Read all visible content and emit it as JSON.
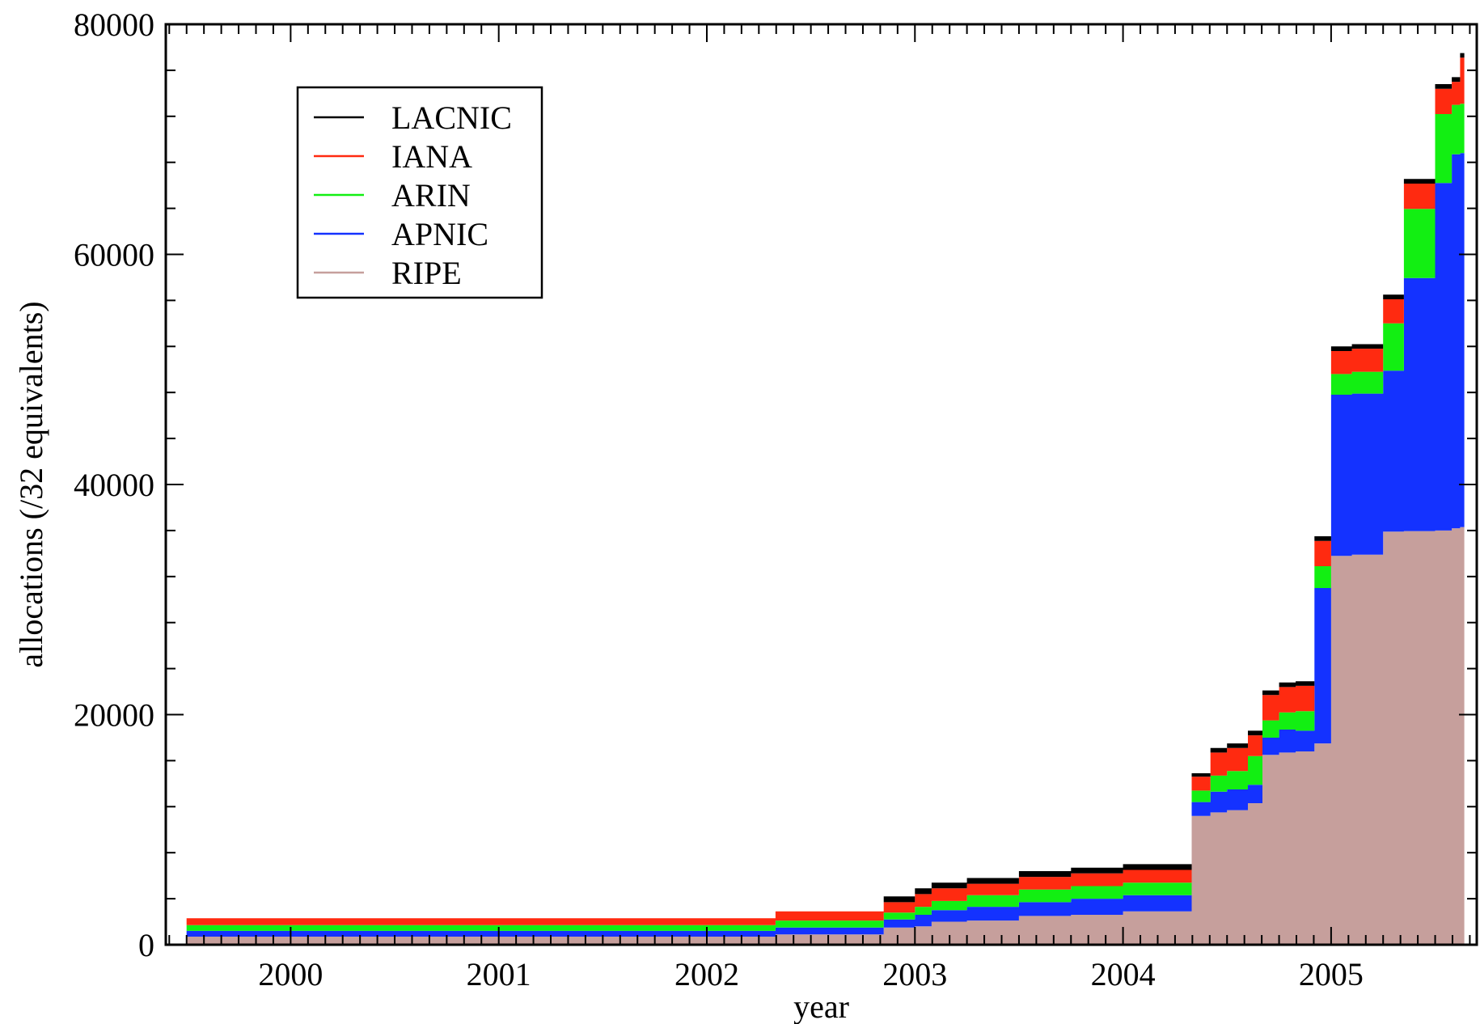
{
  "chart_data": {
    "type": "area",
    "stacked": true,
    "step": true,
    "xlabel": "year",
    "ylabel": "allocations (/32 equivalents)",
    "xlim": [
      1999.4,
      2005.7
    ],
    "ylim": [
      0,
      80000
    ],
    "x_ticks": [
      2000,
      2001,
      2002,
      2003,
      2004,
      2005
    ],
    "x_tick_labels": [
      "2000",
      "2001",
      "2002",
      "2003",
      "2004",
      "2005"
    ],
    "y_ticks": [
      0,
      20000,
      40000,
      60000,
      80000
    ],
    "y_tick_labels": [
      "0",
      "20000",
      "40000",
      "60000",
      "80000"
    ],
    "legend_position": "top-left",
    "colors": {
      "LACNIC": "#000000",
      "IANA": "#ff2a10",
      "ARIN": "#12ef12",
      "APNIC": "#1432ff",
      "RIPE": "#c69f9c"
    },
    "x": [
      1999.5,
      2002.33,
      2002.85,
      2003.0,
      2003.08,
      2003.25,
      2003.5,
      2003.75,
      2004.0,
      2004.33,
      2004.42,
      2004.5,
      2004.6,
      2004.67,
      2004.75,
      2004.83,
      2004.92,
      2005.0,
      2005.1,
      2005.25,
      2005.35,
      2005.5,
      2005.58,
      2005.62
    ],
    "series": [
      {
        "name": "RIPE",
        "values": [
          700,
          900,
          1500,
          1600,
          2000,
          2100,
          2500,
          2600,
          2900,
          11200,
          11500,
          11700,
          12300,
          16500,
          16700,
          16800,
          17500,
          33800,
          33900,
          35900,
          35950,
          36000,
          36200,
          36300
        ]
      },
      {
        "name": "APNIC",
        "values": [
          500,
          600,
          700,
          1000,
          1000,
          1200,
          1200,
          1400,
          1400,
          1200,
          1800,
          1800,
          1600,
          1500,
          2000,
          1800,
          13500,
          14000,
          14000,
          14000,
          22000,
          30200,
          32500,
          32500
        ]
      },
      {
        "name": "ARIN",
        "values": [
          500,
          600,
          600,
          700,
          800,
          1000,
          1100,
          1100,
          1100,
          1000,
          1400,
          1600,
          2500,
          1500,
          1500,
          1700,
          1900,
          1800,
          1900,
          4100,
          6000,
          6000,
          4300,
          4300
        ]
      },
      {
        "name": "IANA",
        "values": [
          600,
          800,
          900,
          1100,
          1100,
          1000,
          1100,
          1100,
          1100,
          1200,
          2000,
          2000,
          1800,
          2200,
          2200,
          2200,
          2200,
          2000,
          2000,
          2100,
          2200,
          2200,
          2000,
          4000
        ]
      },
      {
        "name": "LACNIC",
        "values": [
          0,
          0,
          500,
          500,
          500,
          500,
          500,
          500,
          500,
          300,
          400,
          400,
          400,
          400,
          400,
          400,
          400,
          400,
          400,
          400,
          400,
          400,
          400,
          400
        ]
      }
    ],
    "legend_order": [
      "LACNIC",
      "IANA",
      "ARIN",
      "APNIC",
      "RIPE"
    ]
  }
}
